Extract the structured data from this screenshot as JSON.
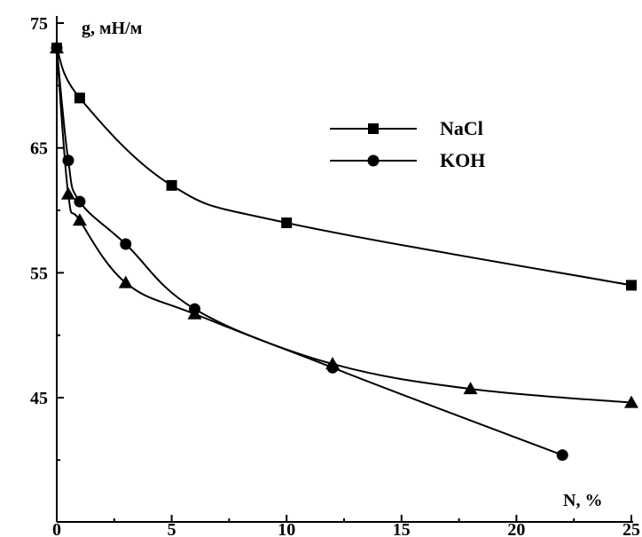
{
  "chart_data": {
    "type": "scatter",
    "title": "",
    "xlabel": "N, %",
    "ylabel": "g, мН/м",
    "xlim": [
      0,
      25
    ],
    "ylim": [
      35,
      75
    ],
    "xticks": [
      "0",
      "5",
      "10",
      "15",
      "20",
      "25"
    ],
    "yticks": [
      "75",
      "65",
      "55",
      "45"
    ],
    "grid": false,
    "legend_position": "top-right",
    "series": [
      {
        "name": "NaCl",
        "marker": "square",
        "color": "#000000",
        "x": [
          0,
          1,
          5,
          10,
          25
        ],
        "y": [
          73,
          69,
          62,
          59,
          54
        ]
      },
      {
        "name": "KOH",
        "marker": "circle",
        "color": "#000000",
        "x": [
          0,
          0.5,
          1,
          3,
          6,
          12,
          22
        ],
        "y": [
          73,
          64,
          60.7,
          57.3,
          52.1,
          47.4,
          40.4
        ]
      },
      {
        "name": "",
        "marker": "triangle",
        "color": "#000000",
        "x": [
          0,
          0.5,
          1,
          3,
          6,
          12,
          18,
          25
        ],
        "y": [
          73,
          61.3,
          59.2,
          54.2,
          51.7,
          47.7,
          45.7,
          44.6
        ]
      }
    ]
  }
}
